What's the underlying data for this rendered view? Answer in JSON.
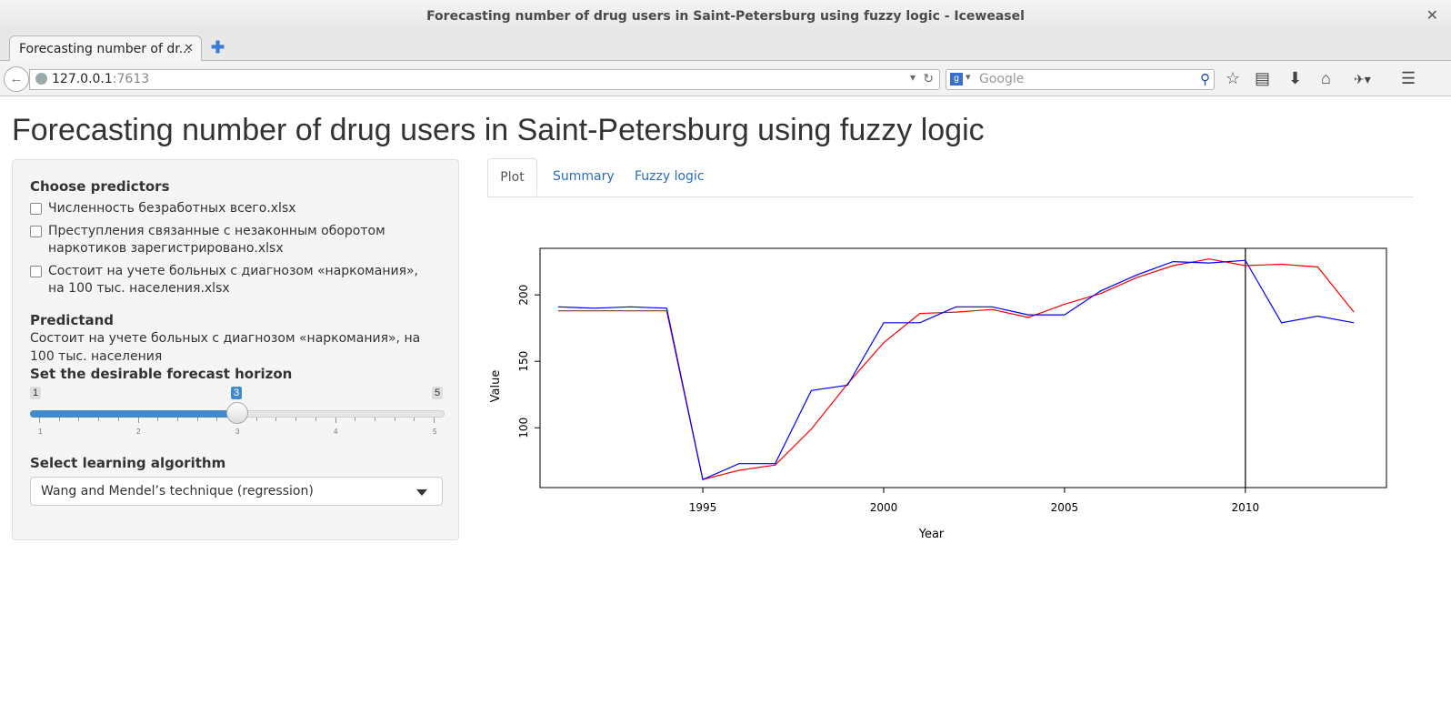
{
  "window": {
    "title": "Forecasting number of drug users in Saint-Petersburg using fuzzy logic - Iceweasel"
  },
  "browser": {
    "tab_title": "Forecasting number of dr...",
    "url_host": "127.0.0.1",
    "url_port": ":7613",
    "search_placeholder": "Google"
  },
  "page": {
    "title": "Forecasting number of drug users in Saint-Petersburg using fuzzy logic"
  },
  "sidebar": {
    "predictors_label": "Choose predictors",
    "predictors": [
      {
        "label": "Численность безработных всего.xlsx",
        "checked": false
      },
      {
        "label": "Преступления связанные с незаконным оборотом наркотиков зарегистрировано.xlsx",
        "checked": false
      },
      {
        "label": "Состоит на учете больных с диагнозом «наркомания», на 100 тыс. населения.xlsx",
        "checked": false
      }
    ],
    "predictand_label": "Predictand",
    "predictand_value": "Состоит на учете больных с диагнозом «наркомания», на 100 тыс. населения",
    "horizon_label": "Set the desirable forecast horizon",
    "slider": {
      "min": "1",
      "max": "5",
      "value": "3",
      "ticks": [
        "1",
        "2",
        "3",
        "4",
        "5"
      ]
    },
    "algorithm_label": "Select learning algorithm",
    "algorithm_value": "Wang and Mendel’s technique (regression)"
  },
  "tabs": [
    {
      "label": "Plot",
      "active": true
    },
    {
      "label": "Summary",
      "active": false
    },
    {
      "label": "Fuzzy logic",
      "active": false
    }
  ],
  "chart_data": {
    "type": "line",
    "title": "",
    "xlabel": "Year",
    "ylabel": "Value",
    "xlim": [
      1990.5,
      2013.9
    ],
    "ylim": [
      55,
      235
    ],
    "xticks": [
      "1995",
      "2000",
      "2005",
      "2010"
    ],
    "yticks": [
      "100",
      "150",
      "200"
    ],
    "vline_x": 2010,
    "x": [
      1991,
      1992,
      1993,
      1994,
      1995,
      1996,
      1997,
      1998,
      1999,
      2000,
      2001,
      2002,
      2003,
      2004,
      2005,
      2006,
      2007,
      2008,
      2009,
      2010,
      2011,
      2012,
      2013
    ],
    "series": [
      {
        "color": "#ff0000",
        "values": [
          188,
          188,
          188,
          188,
          61,
          68,
          72,
          99,
          133,
          164,
          186,
          187,
          189,
          183,
          193,
          201,
          213,
          222,
          227,
          222,
          223,
          221,
          187
        ]
      },
      {
        "color": "#0000ff",
        "values": [
          191,
          190,
          191,
          190,
          61,
          73,
          73,
          128,
          132,
          179,
          179,
          191,
          191,
          185,
          185,
          203,
          215,
          225,
          224,
          226,
          179,
          184,
          179
        ]
      }
    ]
  },
  "colors": {
    "accent": "#428bca",
    "link": "#2a6ebb"
  }
}
